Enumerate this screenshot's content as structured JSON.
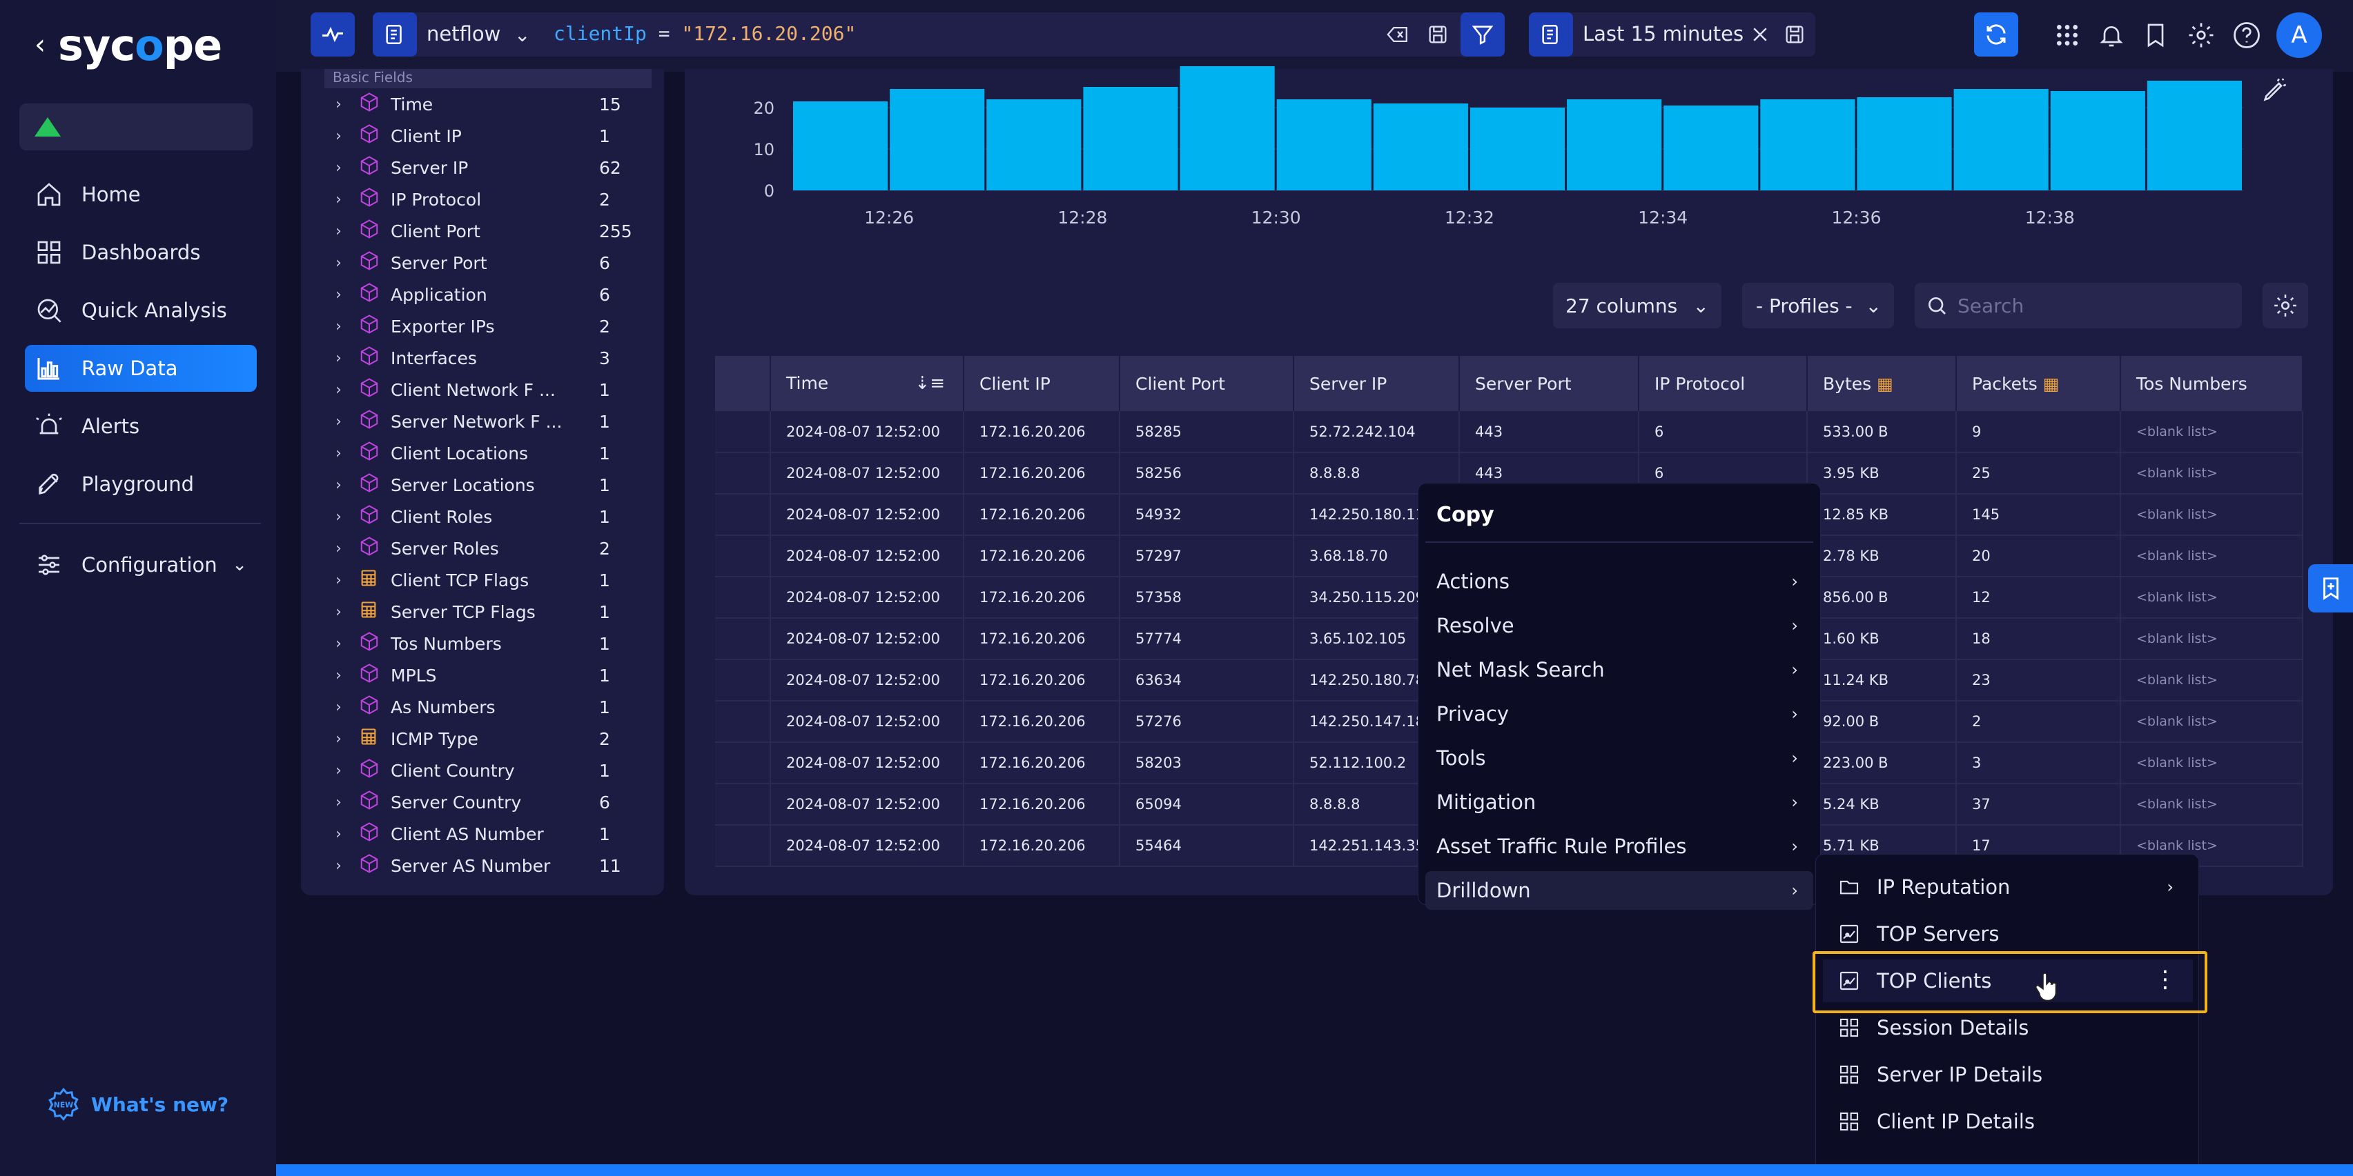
{
  "nav": {
    "brand": "syc pe",
    "brand_o": "o",
    "items": [
      {
        "label": "Home",
        "icon": "home-icon"
      },
      {
        "label": "Dashboards",
        "icon": "dashboards-icon"
      },
      {
        "label": "Quick Analysis",
        "icon": "quick-analysis-icon"
      },
      {
        "label": "Raw Data",
        "icon": "raw-data-icon",
        "active": true
      },
      {
        "label": "Alerts",
        "icon": "alerts-icon"
      },
      {
        "label": "Playground",
        "icon": "playground-icon"
      },
      {
        "label": "Configuration",
        "icon": "configuration-icon"
      }
    ],
    "whats_new": "What's new?",
    "status_color": "#27c35b"
  },
  "topbar": {
    "source": "netflow",
    "query_key": "clientIp",
    "query_op": " = ",
    "query_value": "\"172.16.20.206\"",
    "time_range": "Last 15 minutes",
    "user_initial": "A"
  },
  "fields": {
    "header": "Basic Fields",
    "items": [
      {
        "name": "Time",
        "count": "15",
        "icon": "cube"
      },
      {
        "name": "Client IP",
        "count": "1",
        "icon": "cube"
      },
      {
        "name": "Server IP",
        "count": "62",
        "icon": "cube"
      },
      {
        "name": "IP Protocol",
        "count": "2",
        "icon": "cube"
      },
      {
        "name": "Client Port",
        "count": "255",
        "icon": "cube"
      },
      {
        "name": "Server Port",
        "count": "6",
        "icon": "cube"
      },
      {
        "name": "Application",
        "count": "6",
        "icon": "cube"
      },
      {
        "name": "Exporter IPs",
        "count": "2",
        "icon": "cube"
      },
      {
        "name": "Interfaces",
        "count": "3",
        "icon": "cube"
      },
      {
        "name": "Client Network F ...",
        "count": "1",
        "icon": "cube"
      },
      {
        "name": "Server Network F ...",
        "count": "1",
        "icon": "cube"
      },
      {
        "name": "Client Locations",
        "count": "1",
        "icon": "cube"
      },
      {
        "name": "Server Locations",
        "count": "1",
        "icon": "cube"
      },
      {
        "name": "Client Roles",
        "count": "1",
        "icon": "cube"
      },
      {
        "name": "Server Roles",
        "count": "2",
        "icon": "cube"
      },
      {
        "name": "Client TCP Flags",
        "count": "1",
        "icon": "calc"
      },
      {
        "name": "Server TCP Flags",
        "count": "1",
        "icon": "calc"
      },
      {
        "name": "Tos Numbers",
        "count": "1",
        "icon": "cube"
      },
      {
        "name": "MPLS",
        "count": "1",
        "icon": "cube"
      },
      {
        "name": "As Numbers",
        "count": "1",
        "icon": "cube"
      },
      {
        "name": "ICMP Type",
        "count": "2",
        "icon": "calc"
      },
      {
        "name": "Client Country",
        "count": "1",
        "icon": "cube"
      },
      {
        "name": "Server Country",
        "count": "6",
        "icon": "cube"
      },
      {
        "name": "Client AS Number",
        "count": "1",
        "icon": "cube"
      },
      {
        "name": "Server AS Number",
        "count": "11",
        "icon": "cube"
      }
    ]
  },
  "chart_data": {
    "type": "bar",
    "categories": [
      "12:25",
      "12:26",
      "12:27",
      "12:28",
      "12:29",
      "12:30",
      "12:31",
      "12:32",
      "12:33",
      "12:34",
      "12:35",
      "12:36",
      "12:37",
      "12:38",
      "12:39"
    ],
    "values": [
      21.5,
      24.5,
      22,
      25,
      30.5,
      22,
      21,
      20,
      22,
      20.5,
      22,
      22.5,
      24.5,
      24,
      26.5
    ],
    "x_tick_labels": [
      "12:26",
      "12:28",
      "12:30",
      "12:32",
      "12:34",
      "12:36",
      "12:38"
    ],
    "y_ticks": [
      0,
      10,
      20
    ],
    "ylim": [
      0,
      30
    ],
    "grid": true,
    "bar_color": "#00b2f0"
  },
  "table_controls": {
    "columns": "27 columns",
    "profiles": "- Profiles -",
    "search_placeholder": "Search"
  },
  "table": {
    "headers": [
      "",
      "Time",
      "Client IP",
      "Client Port",
      "Server IP",
      "Server Port",
      "IP Protocol",
      "Bytes",
      "Packets",
      "Tos Numbers"
    ],
    "rows": [
      [
        "2024-08-07 12:52:00",
        "172.16.20.206",
        "58285",
        "52.72.242.104",
        "443",
        "6",
        "533.00 B",
        "9",
        "<blank list>"
      ],
      [
        "2024-08-07 12:52:00",
        "172.16.20.206",
        "58256",
        "8.8.8.8",
        "443",
        "6",
        "3.95 KB",
        "25",
        "<blank list>"
      ],
      [
        "2024-08-07 12:52:00",
        "172.16.20.206",
        "54932",
        "142.250.180.110",
        "",
        "",
        "12.85 KB",
        "145",
        "<blank list>"
      ],
      [
        "2024-08-07 12:52:00",
        "172.16.20.206",
        "57297",
        "3.68.18.70",
        "",
        "",
        "2.78 KB",
        "20",
        "<blank list>"
      ],
      [
        "2024-08-07 12:52:00",
        "172.16.20.206",
        "57358",
        "34.250.115.209",
        "",
        "",
        "856.00 B",
        "12",
        "<blank list>"
      ],
      [
        "2024-08-07 12:52:00",
        "172.16.20.206",
        "57774",
        "3.65.102.105",
        "",
        "",
        "1.60 KB",
        "18",
        "<blank list>"
      ],
      [
        "2024-08-07 12:52:00",
        "172.16.20.206",
        "63634",
        "142.250.180.78",
        "",
        "",
        "11.24 KB",
        "23",
        "<blank list>"
      ],
      [
        "2024-08-07 12:52:00",
        "172.16.20.206",
        "57276",
        "142.250.147.188",
        "",
        "",
        "92.00 B",
        "2",
        "<blank list>"
      ],
      [
        "2024-08-07 12:52:00",
        "172.16.20.206",
        "58203",
        "52.112.100.2",
        "",
        "",
        "223.00 B",
        "3",
        "<blank list>"
      ],
      [
        "2024-08-07 12:52:00",
        "172.16.20.206",
        "65094",
        "8.8.8.8",
        "",
        "",
        "5.24 KB",
        "37",
        "<blank list>"
      ],
      [
        "2024-08-07 12:52:00",
        "172.16.20.206",
        "55464",
        "142.251.143.35",
        "",
        "",
        "5.71 KB",
        "17",
        "<blank list>"
      ]
    ]
  },
  "context_menu": {
    "copy": "Copy",
    "items": [
      "Actions",
      "Resolve",
      "Net Mask Search",
      "Privacy",
      "Tools",
      "Mitigation",
      "Asset Traffic Rule Profiles",
      "Drilldown"
    ]
  },
  "submenu": {
    "items": [
      {
        "label": "IP Reputation",
        "icon": "folder-icon",
        "has_arrow": true
      },
      {
        "label": "TOP Servers",
        "icon": "chart-report-icon"
      },
      {
        "label": "TOP Clients",
        "icon": "chart-report-icon",
        "highlighted": true
      },
      {
        "label": "Session Details",
        "icon": "dashboard-grid-icon"
      },
      {
        "label": "Server IP Details",
        "icon": "dashboard-grid-icon"
      },
      {
        "label": "Client IP Details",
        "icon": "dashboard-grid-icon"
      }
    ]
  }
}
